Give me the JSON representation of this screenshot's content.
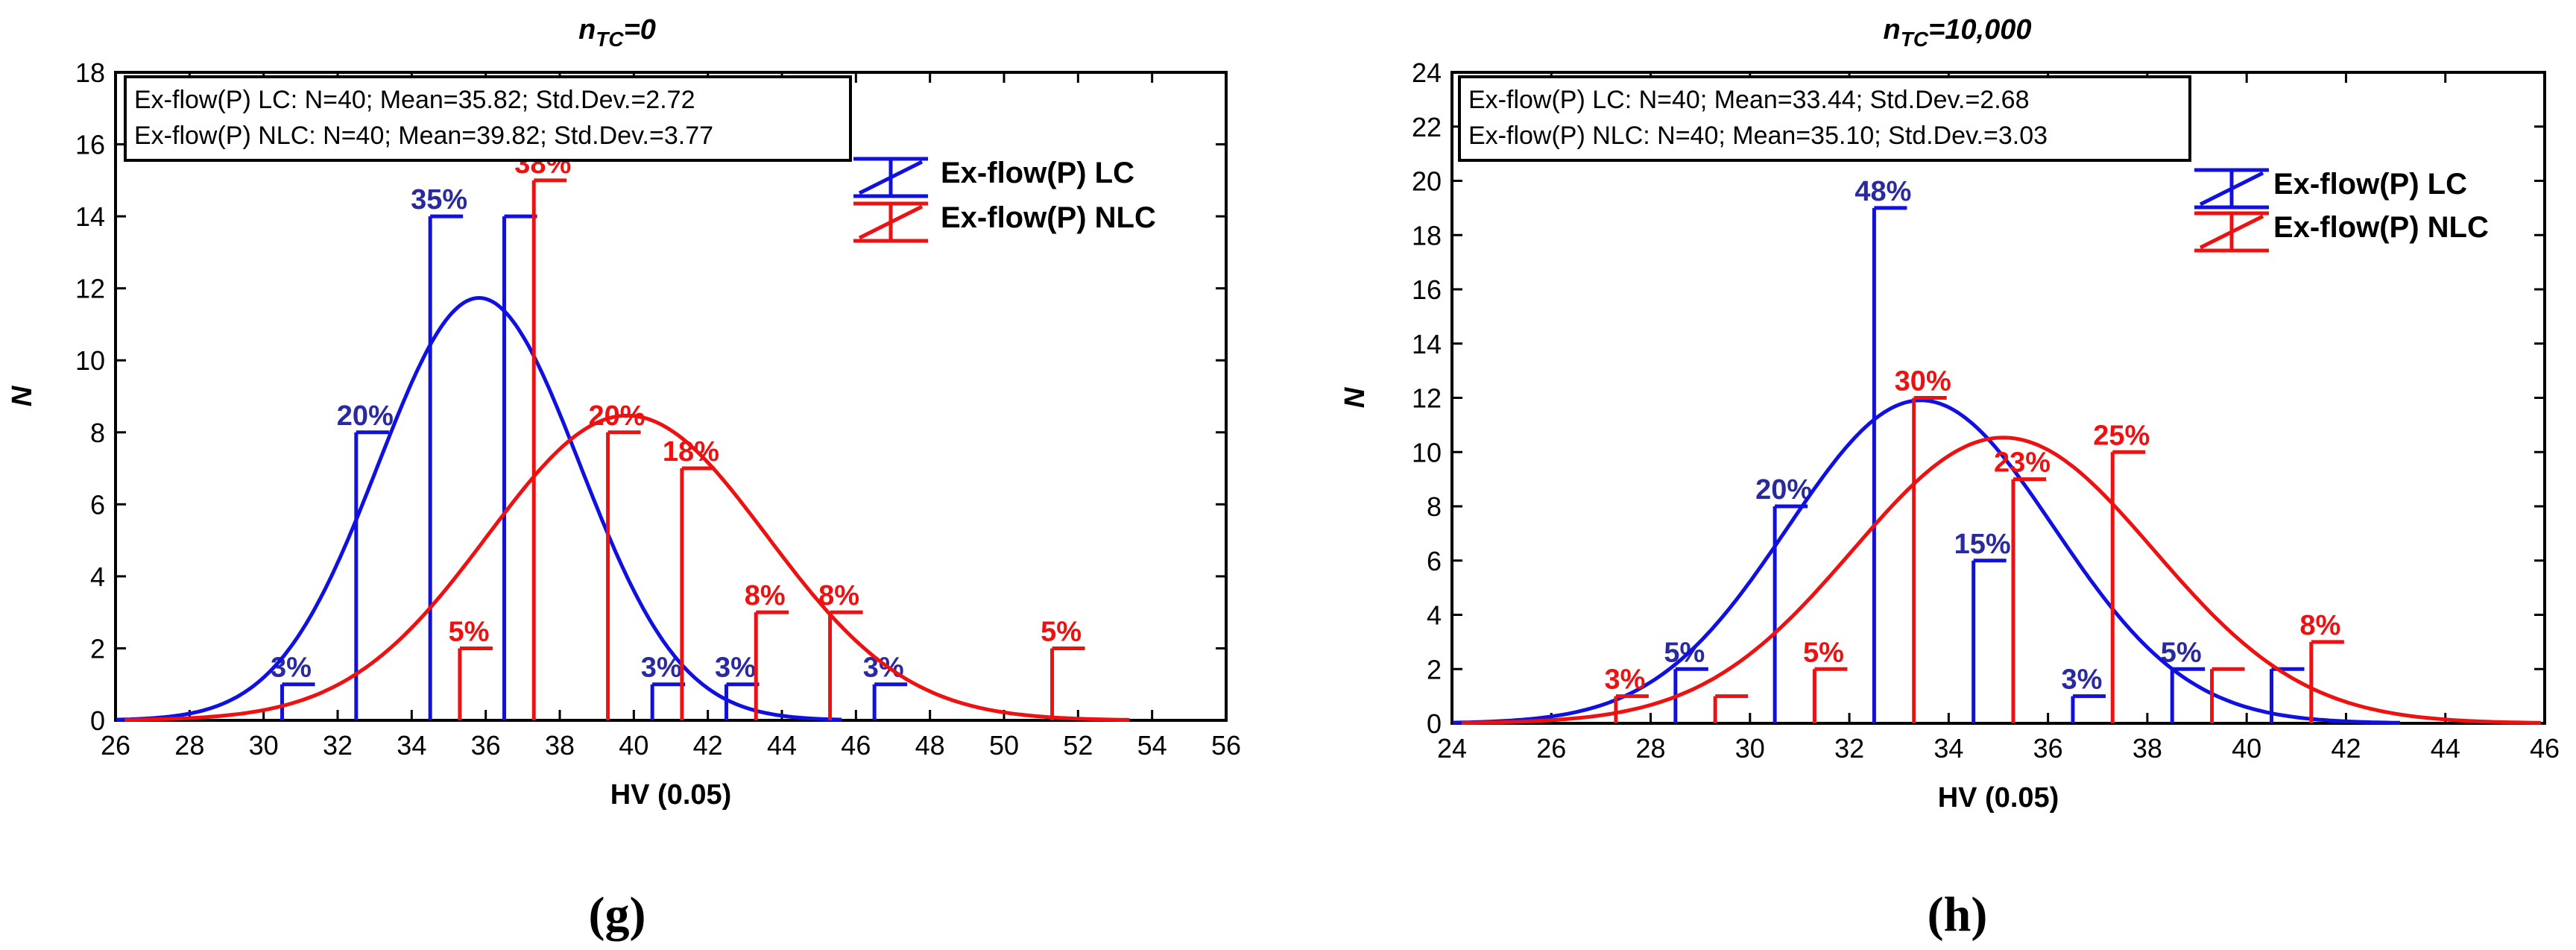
{
  "chart_data": [
    {
      "type": "bar",
      "panel_label": "(g)",
      "title": "n_TC=0",
      "title_main": "n",
      "title_sub": "TC",
      "title_rest": "=0",
      "xlabel": "HV (0.05)",
      "ylabel": "N",
      "xlim": [
        26,
        56
      ],
      "ylim": [
        0,
        18
      ],
      "xticks": [
        26,
        28,
        30,
        32,
        34,
        36,
        38,
        40,
        42,
        44,
        46,
        48,
        50,
        52,
        54,
        56
      ],
      "yticks": [
        0,
        2,
        4,
        6,
        8,
        10,
        12,
        14,
        16,
        18
      ],
      "grid": false,
      "stats_box": [
        "Ex-flow(P) LC: N=40; Mean=35.82; Std.Dev.=2.72",
        "Ex-flow(P) NLC: N=40; Mean=39.82; Std.Dev.=3.77"
      ],
      "legend_position": "top-right",
      "series": [
        {
          "name": "Ex-flow(P) LC",
          "color": "#1010e0",
          "label_color": "#2a2aa0",
          "mean": 35.82,
          "std": 2.72,
          "x": [
            30.5,
            32.5,
            34.5,
            36.5,
            40.5,
            42.5,
            46.5
          ],
          "values": [
            1,
            8,
            14,
            14,
            1,
            1,
            1
          ],
          "labels": [
            "3%",
            "20%",
            "35%",
            "",
            "3%",
            "3%",
            "3%"
          ]
        },
        {
          "name": "Ex-flow(P) NLC",
          "color": "#ee1111",
          "label_color": "#ee1111",
          "mean": 39.82,
          "std": 3.77,
          "x": [
            35.3,
            37.3,
            39.3,
            41.3,
            43.3,
            45.3,
            51.3
          ],
          "values": [
            2,
            15,
            8,
            7,
            3,
            3,
            2
          ],
          "labels": [
            "5%",
            "38%",
            "20%",
            "18%",
            "8%",
            "8%",
            "5%"
          ]
        }
      ]
    },
    {
      "type": "bar",
      "panel_label": "(h)",
      "title": "n_TC=10,000",
      "title_main": "n",
      "title_sub": "TC",
      "title_rest": "=10,000",
      "xlabel": "HV (0.05)",
      "ylabel": "N",
      "xlim": [
        24,
        46
      ],
      "ylim": [
        0,
        24
      ],
      "xticks": [
        24,
        26,
        28,
        30,
        32,
        34,
        36,
        38,
        40,
        42,
        44,
        46
      ],
      "yticks": [
        0,
        2,
        4,
        6,
        8,
        10,
        12,
        14,
        16,
        18,
        20,
        22,
        24
      ],
      "grid": false,
      "stats_box": [
        "Ex-flow(P) LC: N=40; Mean=33.44; Std.Dev.=2.68",
        "Ex-flow(P) NLC: N=40; Mean=35.10; Std.Dev.=3.03"
      ],
      "legend_position": "top-right",
      "series": [
        {
          "name": "Ex-flow(P) LC",
          "color": "#1010e0",
          "label_color": "#2a2aa0",
          "mean": 33.44,
          "std": 2.68,
          "x": [
            28.5,
            30.5,
            32.5,
            34.5,
            36.5,
            38.5,
            40.5
          ],
          "values": [
            2,
            8,
            19,
            6,
            1,
            2,
            2
          ],
          "labels": [
            "5%",
            "20%",
            "48%",
            "15%",
            "3%",
            "5%",
            ""
          ]
        },
        {
          "name": "Ex-flow(P) NLC",
          "color": "#ee1111",
          "label_color": "#ee1111",
          "mean": 35.1,
          "std": 3.03,
          "x": [
            27.3,
            29.3,
            31.3,
            33.3,
            35.3,
            37.3,
            39.3,
            41.3
          ],
          "values": [
            1,
            1,
            2,
            12,
            9,
            10,
            2,
            3
          ],
          "labels": [
            "3%",
            "",
            "5%",
            "30%",
            "23%",
            "25%",
            "",
            "8%"
          ]
        }
      ]
    }
  ]
}
